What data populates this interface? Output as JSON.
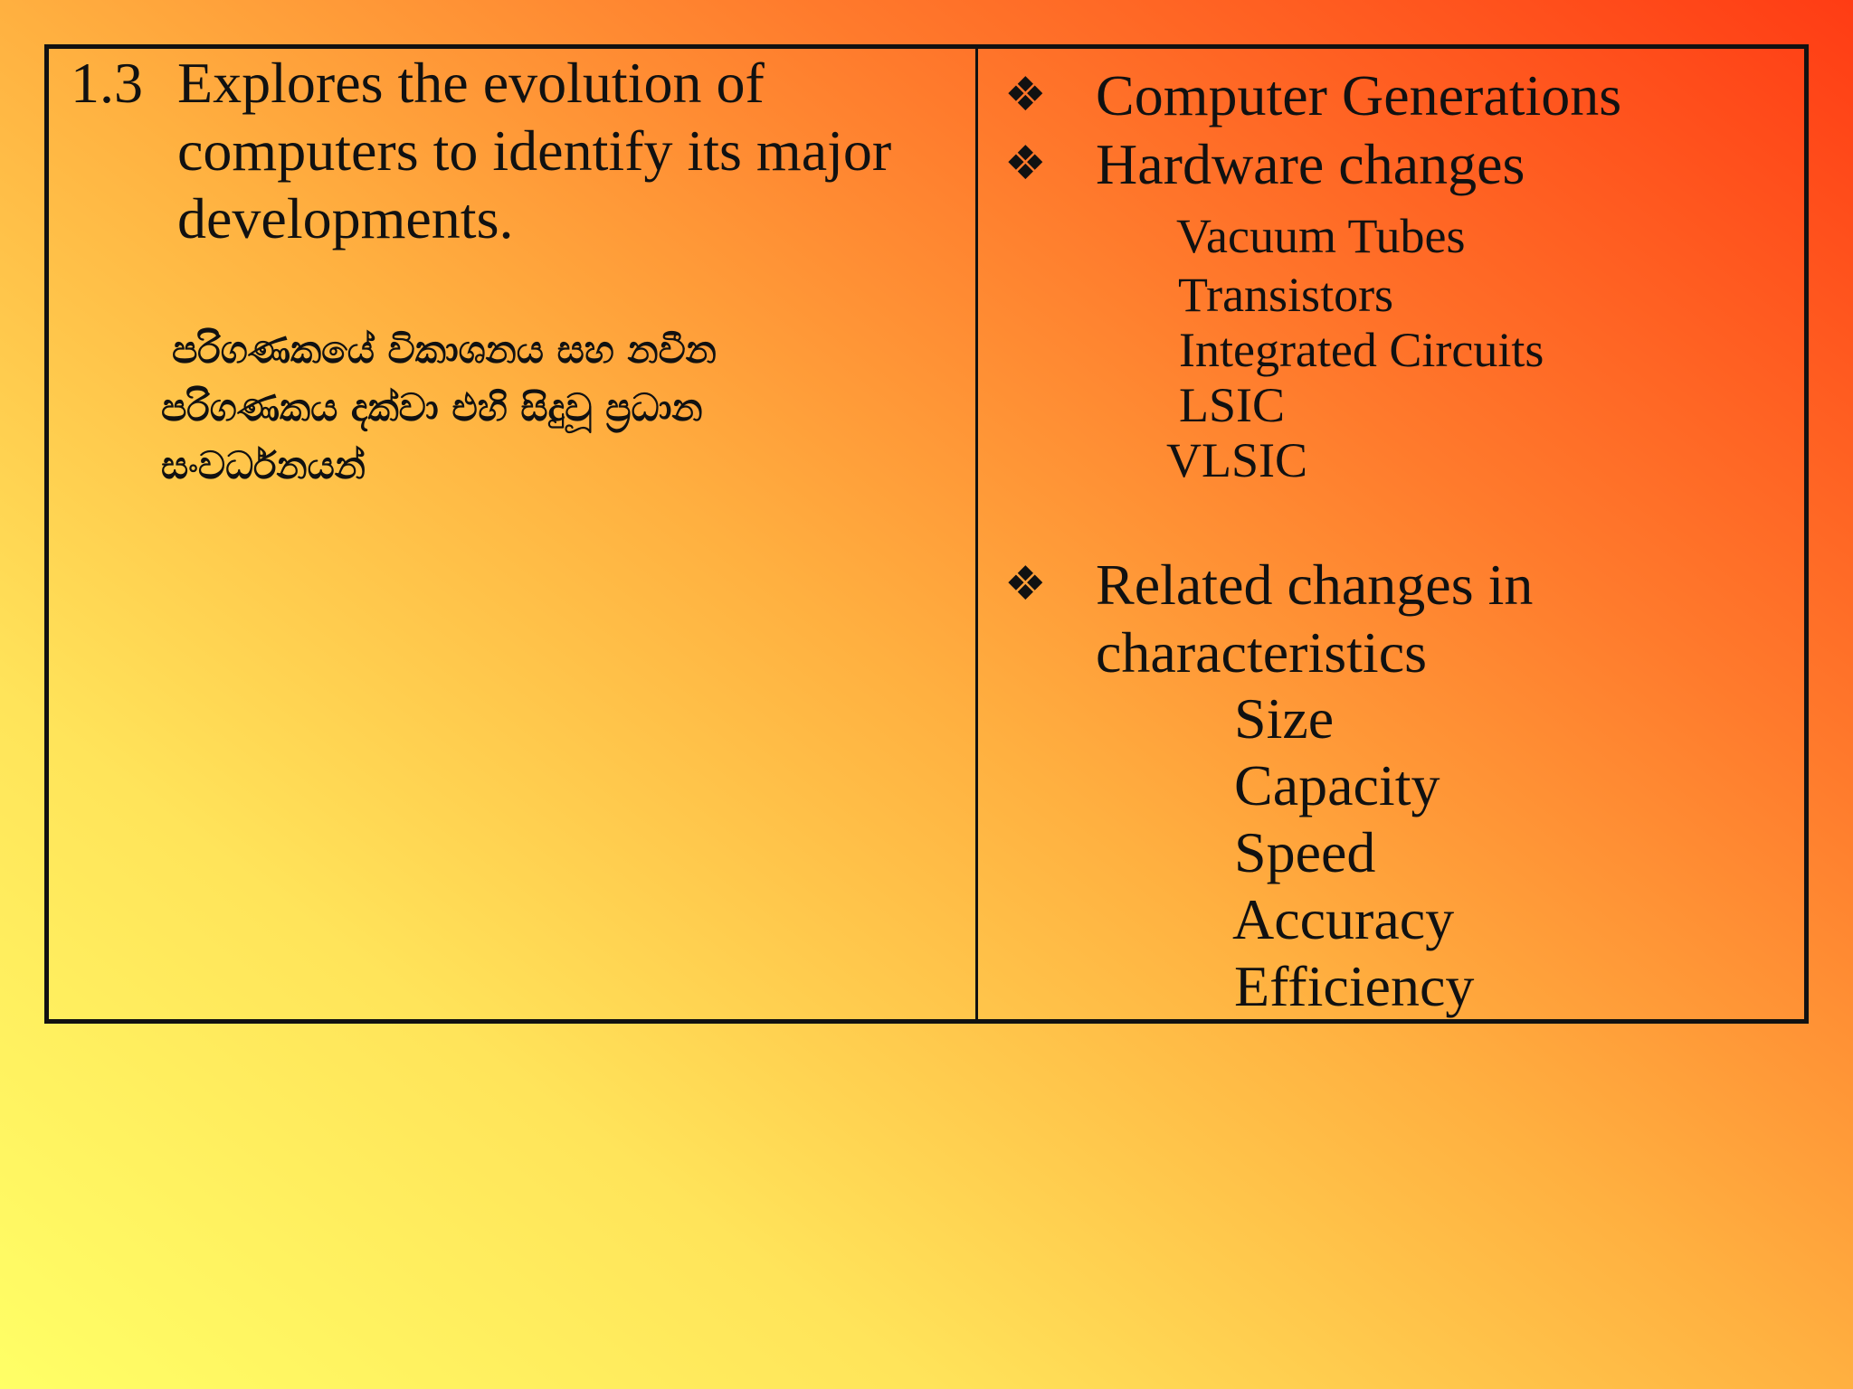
{
  "objective": {
    "number": "1.3",
    "lines": [
      "Explores the evolution of",
      "computers to identify its major",
      "developments."
    ],
    "sinhala_lines": [
      "පරිගණකයේ විකාශනය සහ නවීන",
      "පරිගණකය දක්වා එහි සිදුවූ ප්‍රධාන",
      "සංවර්ධනයන්"
    ]
  },
  "content": {
    "bullet_symbol": "❖",
    "computer_generations": "Computer Generations",
    "hardware_changes": "Hardware changes",
    "hardware_items": [
      "Vacuum Tubes",
      "Transistors",
      "Integrated Circuits",
      "LSIC",
      "VLSIC"
    ],
    "related_changes_lines": [
      "Related changes in",
      "characteristics"
    ],
    "characteristics": [
      "Size",
      "Capacity",
      "Speed",
      "Accuracy",
      "Efficiency"
    ]
  }
}
